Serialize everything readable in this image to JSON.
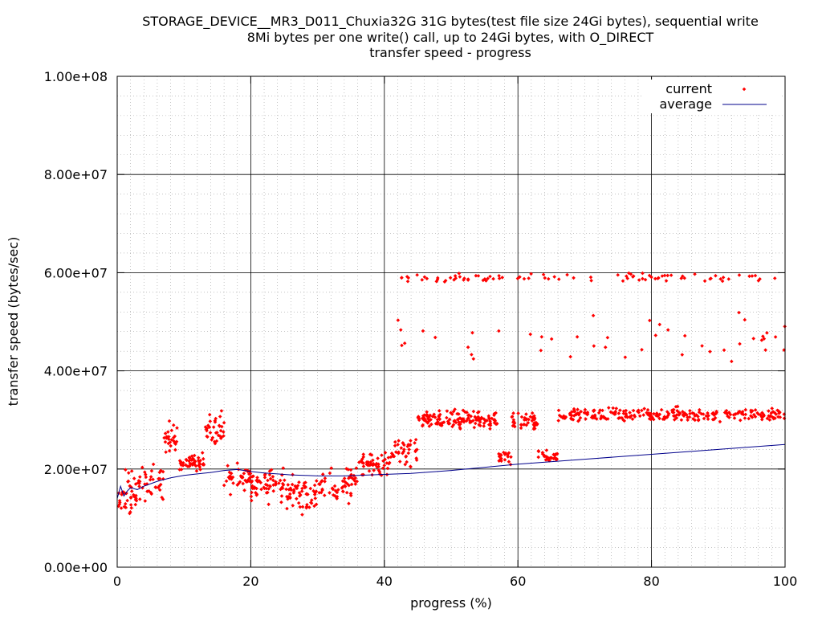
{
  "chart_data": {
    "type": "scatter",
    "title": [
      "STORAGE_DEVICE__MR3_D011_Chuxia32G 31G bytes(test file size 24Gi bytes), sequential write",
      "8Mi bytes per one write() call, up to 24Gi bytes, with O_DIRECT",
      "transfer speed - progress"
    ],
    "xlabel": "progress (%)",
    "ylabel": "transfer speed (bytes/sec)",
    "xlim": [
      0,
      100
    ],
    "ylim": [
      0,
      100000000
    ],
    "x_ticks": [
      {
        "value": 0,
        "label": "0"
      },
      {
        "value": 20,
        "label": "20"
      },
      {
        "value": 40,
        "label": "40"
      },
      {
        "value": 60,
        "label": "60"
      },
      {
        "value": 80,
        "label": "80"
      },
      {
        "value": 100,
        "label": "100"
      }
    ],
    "y_ticks": [
      {
        "value": 0,
        "label": "0.00e+00"
      },
      {
        "value": 20000000,
        "label": "2.00e+07"
      },
      {
        "value": 40000000,
        "label": "4.00e+07"
      },
      {
        "value": 60000000,
        "label": "6.00e+07"
      },
      {
        "value": 80000000,
        "label": "8.00e+07"
      },
      {
        "value": 100000000,
        "label": "1.00e+08"
      }
    ],
    "x_minor_step": 2,
    "y_minor_step": 4000000,
    "grid": true,
    "legend_position": "top-right",
    "series": [
      {
        "name": "current",
        "style": "points",
        "color": "#ff0000",
        "generator": [
          {
            "x0": 0,
            "x1": 3,
            "mean": 15000000,
            "spread": 7000000,
            "n": 40
          },
          {
            "x0": 3,
            "x1": 7,
            "mean": 17000000,
            "spread": 6000000,
            "n": 40
          },
          {
            "x0": 7,
            "x1": 9,
            "mean": 26000000,
            "spread": 4000000,
            "n": 25
          },
          {
            "x0": 9,
            "x1": 13,
            "mean": 21500000,
            "spread": 2500000,
            "n": 50
          },
          {
            "x0": 13,
            "x1": 16,
            "mean": 28000000,
            "spread": 5000000,
            "n": 35
          },
          {
            "x0": 16,
            "x1": 20,
            "mean": 18000000,
            "spread": 4000000,
            "n": 40
          },
          {
            "x0": 20,
            "x1": 25,
            "mean": 17000000,
            "spread": 5000000,
            "n": 60
          },
          {
            "x0": 25,
            "x1": 30,
            "mean": 15000000,
            "spread": 5000000,
            "n": 60
          },
          {
            "x0": 30,
            "x1": 36,
            "mean": 17000000,
            "spread": 5000000,
            "n": 60
          },
          {
            "x0": 36,
            "x1": 41,
            "mean": 21000000,
            "spread": 3000000,
            "n": 50
          },
          {
            "x0": 41,
            "x1": 45,
            "mean": 24000000,
            "spread": 5000000,
            "n": 40
          },
          {
            "x0": 45,
            "x1": 57,
            "mean": 30000000,
            "spread": 2500000,
            "n": 140
          },
          {
            "x0": 57,
            "x1": 59,
            "mean": 22000000,
            "spread": 2500000,
            "n": 20
          },
          {
            "x0": 59,
            "x1": 63,
            "mean": 29500000,
            "spread": 2500000,
            "n": 45
          },
          {
            "x0": 63,
            "x1": 66,
            "mean": 22500000,
            "spread": 2000000,
            "n": 30
          },
          {
            "x0": 66,
            "x1": 100,
            "mean": 31000000,
            "spread": 2000000,
            "n": 260
          },
          {
            "x0": 42,
            "x1": 100,
            "mean": 59000000,
            "spread": 1200000,
            "n": 90
          },
          {
            "x0": 42,
            "x1": 100,
            "mean": 47000000,
            "spread": 8000000,
            "n": 45
          }
        ]
      },
      {
        "name": "average",
        "style": "line",
        "color": "#00008b",
        "x": [
          0,
          0.5,
          1,
          1.5,
          2,
          3,
          4,
          5,
          6,
          8,
          10,
          12,
          14,
          16,
          18,
          20,
          22,
          24,
          26,
          28,
          30,
          32,
          34,
          36,
          38,
          40,
          42,
          44,
          50,
          60,
          70,
          80,
          90,
          100
        ],
        "y": [
          14000000,
          16500000,
          14500000,
          15500000,
          16200000,
          15800000,
          16500000,
          17000000,
          17500000,
          18200000,
          18700000,
          19000000,
          19300000,
          19700000,
          19900000,
          19500000,
          19200000,
          19000000,
          18800000,
          18700000,
          18600000,
          18600000,
          18600000,
          18700000,
          18800000,
          18900000,
          19000000,
          19100000,
          19700000,
          21000000,
          22000000,
          23000000,
          24000000,
          25000000
        ]
      }
    ]
  }
}
